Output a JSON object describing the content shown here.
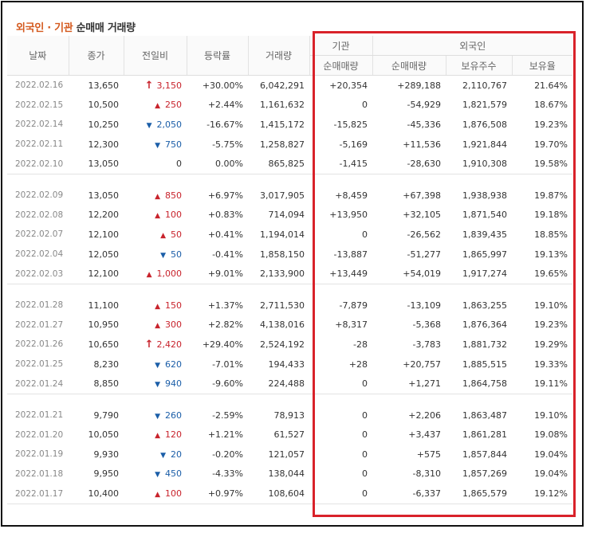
{
  "title": {
    "part1": "외국인 · 기관",
    "part2": " 순매매 거래량"
  },
  "headers": {
    "date": "날짜",
    "close": "종가",
    "change": "전일비",
    "rate": "등락률",
    "volume": "거래량",
    "inst_group": "기관",
    "foreign_group": "외국인",
    "inst_net": "순매매량",
    "foreign_net": "순매매량",
    "holdings": "보유주수",
    "ratio": "보유율"
  },
  "colors": {
    "up": "#c8232c",
    "down": "#1b5ea8",
    "highlight_box": "#d9222a",
    "title_accent": "#d45a1f"
  },
  "rows": [
    {
      "date": "2022.02.16",
      "close": "13,650",
      "change": "3,150",
      "dir": "upper",
      "rate": "+30.00%",
      "volume": "6,042,291",
      "inst": "+20,354",
      "foreign": "+289,188",
      "holdings": "2,110,767",
      "ratio": "21.64%"
    },
    {
      "date": "2022.02.15",
      "close": "10,500",
      "change": "250",
      "dir": "up",
      "rate": "+2.44%",
      "volume": "1,161,632",
      "inst": "0",
      "foreign": "-54,929",
      "holdings": "1,821,579",
      "ratio": "18.67%"
    },
    {
      "date": "2022.02.14",
      "close": "10,250",
      "change": "2,050",
      "dir": "down",
      "rate": "-16.67%",
      "volume": "1,415,172",
      "inst": "-15,825",
      "foreign": "-45,336",
      "holdings": "1,876,508",
      "ratio": "19.23%"
    },
    {
      "date": "2022.02.11",
      "close": "12,300",
      "change": "750",
      "dir": "down",
      "rate": "-5.75%",
      "volume": "1,258,827",
      "inst": "-5,169",
      "foreign": "+11,536",
      "holdings": "1,921,844",
      "ratio": "19.70%"
    },
    {
      "date": "2022.02.10",
      "close": "13,050",
      "change": "0",
      "dir": "none",
      "rate": "0.00%",
      "volume": "865,825",
      "inst": "-1,415",
      "foreign": "-28,630",
      "holdings": "1,910,308",
      "ratio": "19.58%"
    },
    {
      "date": "2022.02.09",
      "close": "13,050",
      "change": "850",
      "dir": "up",
      "rate": "+6.97%",
      "volume": "3,017,905",
      "inst": "+8,459",
      "foreign": "+67,398",
      "holdings": "1,938,938",
      "ratio": "19.87%"
    },
    {
      "date": "2022.02.08",
      "close": "12,200",
      "change": "100",
      "dir": "up",
      "rate": "+0.83%",
      "volume": "714,094",
      "inst": "+13,950",
      "foreign": "+32,105",
      "holdings": "1,871,540",
      "ratio": "19.18%"
    },
    {
      "date": "2022.02.07",
      "close": "12,100",
      "change": "50",
      "dir": "up",
      "rate": "+0.41%",
      "volume": "1,194,014",
      "inst": "0",
      "foreign": "-26,562",
      "holdings": "1,839,435",
      "ratio": "18.85%"
    },
    {
      "date": "2022.02.04",
      "close": "12,050",
      "change": "50",
      "dir": "down",
      "rate": "-0.41%",
      "volume": "1,858,150",
      "inst": "-13,887",
      "foreign": "-51,277",
      "holdings": "1,865,997",
      "ratio": "19.13%"
    },
    {
      "date": "2022.02.03",
      "close": "12,100",
      "change": "1,000",
      "dir": "up",
      "rate": "+9.01%",
      "volume": "2,133,900",
      "inst": "+13,449",
      "foreign": "+54,019",
      "holdings": "1,917,274",
      "ratio": "19.65%"
    },
    {
      "date": "2022.01.28",
      "close": "11,100",
      "change": "150",
      "dir": "up",
      "rate": "+1.37%",
      "volume": "2,711,530",
      "inst": "-7,879",
      "foreign": "-13,109",
      "holdings": "1,863,255",
      "ratio": "19.10%"
    },
    {
      "date": "2022.01.27",
      "close": "10,950",
      "change": "300",
      "dir": "up",
      "rate": "+2.82%",
      "volume": "4,138,016",
      "inst": "+8,317",
      "foreign": "-5,368",
      "holdings": "1,876,364",
      "ratio": "19.23%"
    },
    {
      "date": "2022.01.26",
      "close": "10,650",
      "change": "2,420",
      "dir": "upper",
      "rate": "+29.40%",
      "volume": "2,524,192",
      "inst": "-28",
      "foreign": "-3,783",
      "holdings": "1,881,732",
      "ratio": "19.29%"
    },
    {
      "date": "2022.01.25",
      "close": "8,230",
      "change": "620",
      "dir": "down",
      "rate": "-7.01%",
      "volume": "194,433",
      "inst": "+28",
      "foreign": "+20,757",
      "holdings": "1,885,515",
      "ratio": "19.33%"
    },
    {
      "date": "2022.01.24",
      "close": "8,850",
      "change": "940",
      "dir": "down",
      "rate": "-9.60%",
      "volume": "224,488",
      "inst": "0",
      "foreign": "+1,271",
      "holdings": "1,864,758",
      "ratio": "19.11%"
    },
    {
      "date": "2022.01.21",
      "close": "9,790",
      "change": "260",
      "dir": "down",
      "rate": "-2.59%",
      "volume": "78,913",
      "inst": "0",
      "foreign": "+2,206",
      "holdings": "1,863,487",
      "ratio": "19.10%"
    },
    {
      "date": "2022.01.20",
      "close": "10,050",
      "change": "120",
      "dir": "up",
      "rate": "+1.21%",
      "volume": "61,527",
      "inst": "0",
      "foreign": "+3,437",
      "holdings": "1,861,281",
      "ratio": "19.08%"
    },
    {
      "date": "2022.01.19",
      "close": "9,930",
      "change": "20",
      "dir": "down",
      "rate": "-0.20%",
      "volume": "121,057",
      "inst": "0",
      "foreign": "+575",
      "holdings": "1,857,844",
      "ratio": "19.04%"
    },
    {
      "date": "2022.01.18",
      "close": "9,950",
      "change": "450",
      "dir": "down",
      "rate": "-4.33%",
      "volume": "138,044",
      "inst": "0",
      "foreign": "-8,310",
      "holdings": "1,857,269",
      "ratio": "19.04%"
    },
    {
      "date": "2022.01.17",
      "close": "10,400",
      "change": "100",
      "dir": "up",
      "rate": "+0.97%",
      "volume": "108,604",
      "inst": "0",
      "foreign": "-6,337",
      "holdings": "1,865,579",
      "ratio": "19.12%"
    }
  ]
}
